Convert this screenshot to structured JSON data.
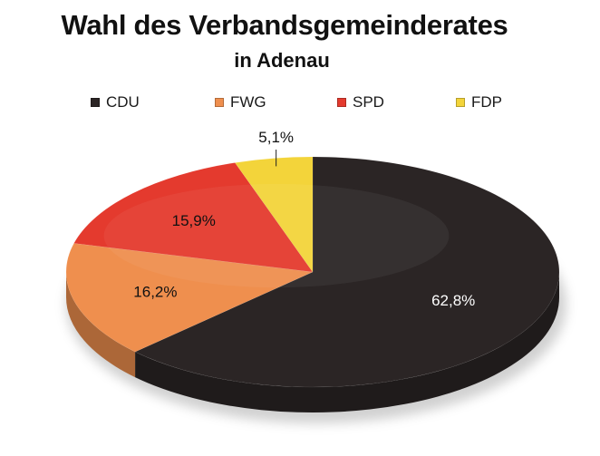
{
  "chart_data": {
    "type": "pie",
    "title": "Wahl des Verbandsgemeinderates",
    "subtitle": "in Adenau",
    "categories": [
      "CDU",
      "FWG",
      "SPD",
      "FDP"
    ],
    "values": [
      62.8,
      16.2,
      15.9,
      5.1
    ],
    "value_labels": [
      "62,8%",
      "16,2%",
      "15,9%",
      "5,1%"
    ],
    "colors": [
      "#2b2525",
      "#ef8f4e",
      "#e43a2e",
      "#f3d43a"
    ],
    "legend_position": "top",
    "style": "3d"
  }
}
